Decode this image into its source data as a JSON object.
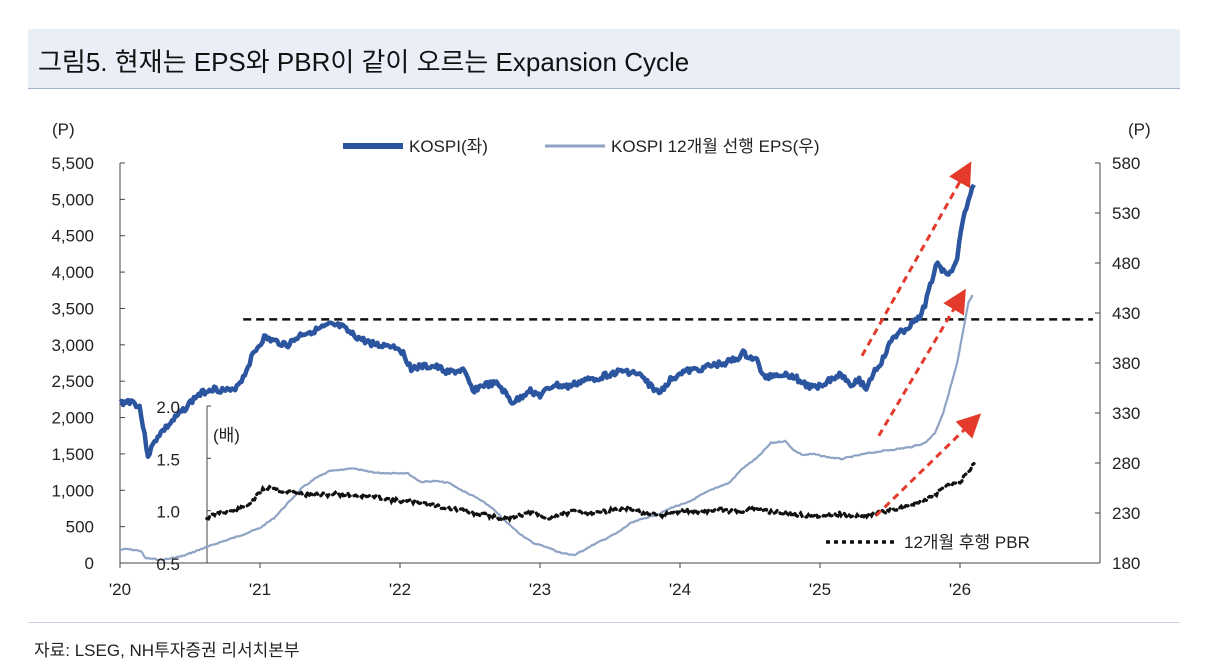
{
  "title": "그림5. 현재는 EPS와 PBR이 같이 오르는 Expansion Cycle",
  "source": "자료: LSEG, NH투자증권 리서치본부",
  "colors": {
    "kospi": "#2c55a0",
    "eps": "#8fa3c4",
    "pbr": "#111111",
    "arrow": "#e33a2b",
    "title_band": "#e9eef7"
  },
  "chart_data": [
    {
      "type": "line",
      "left_axis": {
        "unit_label": "(P)",
        "ylim": [
          0,
          5500
        ],
        "ticks": [
          "0",
          "500",
          "1,000",
          "1,500",
          "2,000",
          "2,500",
          "3,000",
          "3,500",
          "4,000",
          "4,500",
          "5,000",
          "5,500"
        ]
      },
      "right_axis": {
        "unit_label": "(P)",
        "ylim": [
          180,
          580
        ],
        "ticks": [
          "180",
          "230",
          "280",
          "330",
          "380",
          "430",
          "480",
          "530",
          "580"
        ]
      },
      "x_axis": {
        "xlim": [
          2020.0,
          2027.0
        ],
        "ticks": [
          {
            "x": 2020.0,
            "label": "'20"
          },
          {
            "x": 2021.0,
            "label": "'21"
          },
          {
            "x": 2022.0,
            "label": "'22"
          },
          {
            "x": 2023.0,
            "label": "'23"
          },
          {
            "x": 2024.0,
            "label": "'24"
          },
          {
            "x": 2025.0,
            "label": "'25"
          },
          {
            "x": 2026.0,
            "label": "'26"
          }
        ]
      },
      "series": [
        {
          "name": "KOSPI(좌)",
          "axis": "left",
          "style": "thick",
          "points": [
            [
              2020.0,
              2200
            ],
            [
              2020.08,
              2230
            ],
            [
              2020.14,
              2150
            ],
            [
              2020.2,
              1480
            ],
            [
              2020.27,
              1750
            ],
            [
              2020.35,
              1900
            ],
            [
              2020.45,
              2100
            ],
            [
              2020.55,
              2300
            ],
            [
              2020.65,
              2400
            ],
            [
              2020.8,
              2360
            ],
            [
              2020.88,
              2550
            ],
            [
              2020.95,
              2870
            ],
            [
              2021.03,
              3100
            ],
            [
              2021.1,
              3050
            ],
            [
              2021.2,
              3000
            ],
            [
              2021.3,
              3150
            ],
            [
              2021.4,
              3200
            ],
            [
              2021.5,
              3270
            ],
            [
              2021.58,
              3250
            ],
            [
              2021.65,
              3150
            ],
            [
              2021.75,
              3050
            ],
            [
              2021.85,
              2990
            ],
            [
              2021.92,
              3000
            ],
            [
              2022.0,
              2950
            ],
            [
              2022.08,
              2680
            ],
            [
              2022.17,
              2700
            ],
            [
              2022.25,
              2700
            ],
            [
              2022.35,
              2620
            ],
            [
              2022.45,
              2650
            ],
            [
              2022.52,
              2370
            ],
            [
              2022.6,
              2450
            ],
            [
              2022.7,
              2460
            ],
            [
              2022.8,
              2210
            ],
            [
              2022.85,
              2250
            ],
            [
              2022.92,
              2380
            ],
            [
              2023.0,
              2300
            ],
            [
              2023.1,
              2450
            ],
            [
              2023.2,
              2420
            ],
            [
              2023.3,
              2500
            ],
            [
              2023.4,
              2540
            ],
            [
              2023.5,
              2600
            ],
            [
              2023.6,
              2640
            ],
            [
              2023.7,
              2600
            ],
            [
              2023.8,
              2420
            ],
            [
              2023.85,
              2330
            ],
            [
              2023.92,
              2500
            ],
            [
              2024.0,
              2620
            ],
            [
              2024.1,
              2650
            ],
            [
              2024.2,
              2700
            ],
            [
              2024.3,
              2740
            ],
            [
              2024.4,
              2800
            ],
            [
              2024.45,
              2880
            ],
            [
              2024.55,
              2780
            ],
            [
              2024.6,
              2550
            ],
            [
              2024.7,
              2600
            ],
            [
              2024.8,
              2580
            ],
            [
              2024.9,
              2450
            ],
            [
              2024.95,
              2400
            ],
            [
              2025.05,
              2500
            ],
            [
              2025.15,
              2600
            ],
            [
              2025.22,
              2470
            ],
            [
              2025.28,
              2510
            ],
            [
              2025.33,
              2400
            ],
            [
              2025.38,
              2610
            ],
            [
              2025.45,
              2800
            ],
            [
              2025.52,
              3100
            ],
            [
              2025.6,
              3200
            ],
            [
              2025.7,
              3350
            ],
            [
              2025.75,
              3550
            ],
            [
              2025.8,
              3900
            ],
            [
              2025.84,
              4150
            ],
            [
              2025.88,
              4000
            ],
            [
              2025.93,
              4000
            ],
            [
              2025.98,
              4200
            ],
            [
              2026.02,
              4700
            ],
            [
              2026.06,
              5000
            ],
            [
              2026.1,
              5200
            ]
          ]
        },
        {
          "name": "KOSPI 12개월 선행 EPS(우)",
          "axis": "right",
          "style": "thin",
          "points": [
            [
              2020.0,
              193
            ],
            [
              2020.05,
              194
            ],
            [
              2020.1,
              193
            ],
            [
              2020.15,
              192
            ],
            [
              2020.18,
              185
            ],
            [
              2020.3,
              183
            ],
            [
              2020.45,
              187
            ],
            [
              2020.6,
              195
            ],
            [
              2020.7,
              200
            ],
            [
              2020.85,
              207
            ],
            [
              2021.0,
              215
            ],
            [
              2021.1,
              225
            ],
            [
              2021.2,
              240
            ],
            [
              2021.3,
              255
            ],
            [
              2021.4,
              265
            ],
            [
              2021.5,
              272
            ],
            [
              2021.58,
              273
            ],
            [
              2021.65,
              275
            ],
            [
              2021.75,
              272
            ],
            [
              2021.85,
              270
            ],
            [
              2021.95,
              270
            ],
            [
              2022.05,
              270
            ],
            [
              2022.15,
              261
            ],
            [
              2022.25,
              262
            ],
            [
              2022.35,
              260
            ],
            [
              2022.45,
              252
            ],
            [
              2022.55,
              245
            ],
            [
              2022.65,
              236
            ],
            [
              2022.75,
              222
            ],
            [
              2022.85,
              210
            ],
            [
              2022.95,
              200
            ],
            [
              2023.05,
              196
            ],
            [
              2023.15,
              190
            ],
            [
              2023.25,
              188
            ],
            [
              2023.35,
              196
            ],
            [
              2023.45,
              203
            ],
            [
              2023.55,
              210
            ],
            [
              2023.65,
              220
            ],
            [
              2023.75,
              225
            ],
            [
              2023.85,
              229
            ],
            [
              2023.95,
              236
            ],
            [
              2024.05,
              240
            ],
            [
              2024.15,
              248
            ],
            [
              2024.25,
              255
            ],
            [
              2024.35,
              260
            ],
            [
              2024.45,
              275
            ],
            [
              2024.55,
              285
            ],
            [
              2024.65,
              300
            ],
            [
              2024.75,
              302
            ],
            [
              2024.82,
              292
            ],
            [
              2024.88,
              288
            ],
            [
              2024.95,
              289
            ],
            [
              2025.05,
              286
            ],
            [
              2025.15,
              284
            ],
            [
              2025.25,
              287
            ],
            [
              2025.35,
              290
            ],
            [
              2025.45,
              292
            ],
            [
              2025.55,
              294
            ],
            [
              2025.65,
              296
            ],
            [
              2025.75,
              300
            ],
            [
              2025.82,
              310
            ],
            [
              2025.88,
              330
            ],
            [
              2025.93,
              355
            ],
            [
              2025.98,
              380
            ],
            [
              2026.02,
              410
            ],
            [
              2026.06,
              440
            ],
            [
              2026.09,
              448
            ]
          ]
        },
        {
          "name": "12개월 후행 PBR",
          "axis": "inset",
          "style": "dashed",
          "points": [
            [
              2020.62,
              0.93
            ],
            [
              2020.72,
              0.99
            ],
            [
              2020.82,
              1.0
            ],
            [
              2020.9,
              1.04
            ],
            [
              2020.95,
              1.1
            ],
            [
              2021.02,
              1.2
            ],
            [
              2021.08,
              1.23
            ],
            [
              2021.15,
              1.19
            ],
            [
              2021.25,
              1.17
            ],
            [
              2021.35,
              1.15
            ],
            [
              2021.45,
              1.15
            ],
            [
              2021.55,
              1.16
            ],
            [
              2021.65,
              1.15
            ],
            [
              2021.75,
              1.14
            ],
            [
              2021.85,
              1.13
            ],
            [
              2021.95,
              1.1
            ],
            [
              2022.05,
              1.09
            ],
            [
              2022.15,
              1.08
            ],
            [
              2022.25,
              1.05
            ],
            [
              2022.35,
              1.02
            ],
            [
              2022.45,
              1.0
            ],
            [
              2022.55,
              0.97
            ],
            [
              2022.65,
              0.95
            ],
            [
              2022.75,
              0.92
            ],
            [
              2022.85,
              0.96
            ],
            [
              2022.95,
              0.98
            ],
            [
              2023.05,
              0.92
            ],
            [
              2023.15,
              0.97
            ],
            [
              2023.25,
              0.99
            ],
            [
              2023.35,
              0.98
            ],
            [
              2023.45,
              0.99
            ],
            [
              2023.55,
              1.01
            ],
            [
              2023.65,
              1.02
            ],
            [
              2023.75,
              0.97
            ],
            [
              2023.85,
              0.95
            ],
            [
              2023.95,
              0.98
            ],
            [
              2024.05,
              1.0
            ],
            [
              2024.15,
              0.99
            ],
            [
              2024.25,
              1.01
            ],
            [
              2024.35,
              1.0
            ],
            [
              2024.45,
              1.0
            ],
            [
              2024.55,
              1.02
            ],
            [
              2024.65,
              0.99
            ],
            [
              2024.75,
              0.98
            ],
            [
              2024.85,
              0.96
            ],
            [
              2024.95,
              0.95
            ],
            [
              2025.05,
              0.96
            ],
            [
              2025.15,
              0.97
            ],
            [
              2025.22,
              0.94
            ],
            [
              2025.3,
              0.95
            ],
            [
              2025.38,
              0.97
            ],
            [
              2025.48,
              1.0
            ],
            [
              2025.58,
              1.03
            ],
            [
              2025.68,
              1.07
            ],
            [
              2025.76,
              1.1
            ],
            [
              2025.82,
              1.15
            ],
            [
              2025.88,
              1.22
            ],
            [
              2025.94,
              1.25
            ],
            [
              2026.0,
              1.28
            ],
            [
              2026.05,
              1.35
            ],
            [
              2026.1,
              1.45
            ]
          ]
        }
      ],
      "inset_axis": {
        "unit_label": "(배)",
        "ylim": [
          0.5,
          2.0
        ],
        "ticks": [
          "0.5",
          "1.0",
          "1.5",
          "2.0"
        ]
      },
      "reference_line": {
        "axis": "left",
        "y": 3350,
        "x_range": [
          2020.88,
          2026.95
        ],
        "style": "dashed"
      },
      "arrows": [
        {
          "from": [
            2025.3,
            2850
          ],
          "to": [
            2026.06,
            5450
          ]
        },
        {
          "from": [
            2025.42,
            1750
          ],
          "to": [
            2026.02,
            3700
          ]
        },
        {
          "from": [
            2025.4,
            650
          ],
          "to": [
            2026.12,
            2000
          ]
        }
      ],
      "legend": {
        "placement": "top-center",
        "inset_placement": "bottom-right"
      }
    }
  ]
}
